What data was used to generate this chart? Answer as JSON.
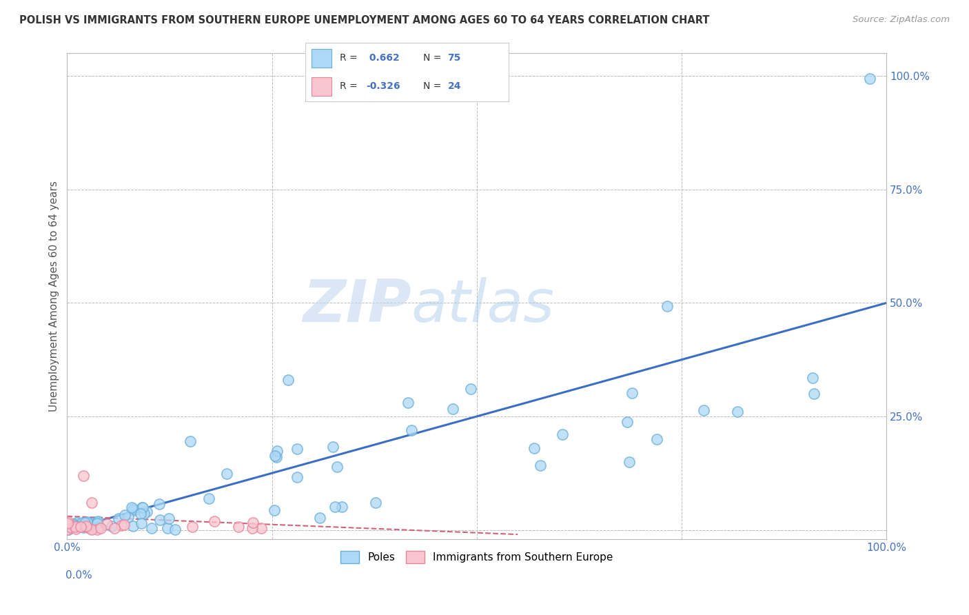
{
  "title": "POLISH VS IMMIGRANTS FROM SOUTHERN EUROPE UNEMPLOYMENT AMONG AGES 60 TO 64 YEARS CORRELATION CHART",
  "source": "Source: ZipAtlas.com",
  "ylabel": "Unemployment Among Ages 60 to 64 years",
  "xlim": [
    0.0,
    1.0
  ],
  "ylim": [
    -0.02,
    1.05
  ],
  "xtick_positions": [
    0.0,
    0.25,
    0.5,
    0.75,
    1.0
  ],
  "xtick_labels": [
    "0.0%",
    "",
    "",
    "",
    "100.0%"
  ],
  "ytick_left_positions": [
    0.0
  ],
  "ytick_left_labels": [
    ""
  ],
  "right_ytick_positions": [
    0.25,
    0.5,
    0.75,
    1.0
  ],
  "right_ytick_labels": [
    "25.0%",
    "50.0%",
    "75.0%",
    "100.0%"
  ],
  "poles_color": "#ADD8F7",
  "poles_edge_color": "#6AAED6",
  "immigrants_color": "#F9C6D0",
  "immigrants_edge_color": "#E8849A",
  "regression_color_poles": "#3A6EC4",
  "regression_color_immigrants": "#D4607A",
  "R_poles": 0.662,
  "N_poles": 75,
  "R_immigrants": -0.326,
  "N_immigrants": 24,
  "watermark_zip": "ZIP",
  "watermark_atlas": "atlas",
  "background_color": "#ffffff",
  "grid_color": "#bbbbbb",
  "legend_label_poles": "Poles",
  "legend_label_immigrants": "Immigrants from Southern Europe",
  "poles_regression_x0": 0.0,
  "poles_regression_y0": 0.0,
  "poles_regression_x1": 1.0,
  "poles_regression_y1": 0.5,
  "imm_regression_x0": 0.0,
  "imm_regression_y0": 0.03,
  "imm_regression_x1": 0.55,
  "imm_regression_y1": -0.01
}
